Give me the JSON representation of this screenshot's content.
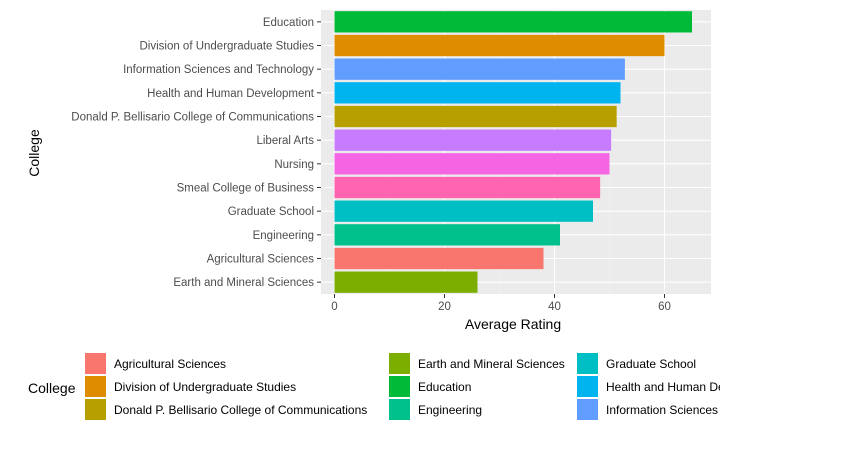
{
  "chart_data": {
    "type": "bar",
    "orientation": "horizontal",
    "xlabel": "Average Rating",
    "ylabel": "College",
    "xlim": [
      0,
      68
    ],
    "x_ticks": [
      0,
      20,
      40,
      60
    ],
    "grid": true,
    "legend": {
      "title": "College",
      "placement": "bottom"
    },
    "categories": [
      "Education",
      "Division of Undergraduate Studies",
      "Information Sciences and Technology",
      "Health and Human Development",
      "Donald P. Bellisario College of Communications",
      "Liberal Arts",
      "Nursing",
      "Smeal College of Business",
      "Graduate School",
      "Engineering",
      "Agricultural Sciences",
      "Earth and Mineral Sciences"
    ],
    "values": [
      65,
      60,
      52.8,
      52,
      51.3,
      50.3,
      50,
      48.3,
      47,
      41,
      38,
      26
    ],
    "colors": {
      "Agricultural Sciences": "#F8766D",
      "Division of Undergraduate Studies": "#DE8C00",
      "Donald P. Bellisario College of Communications": "#B79F00",
      "Earth and Mineral Sciences": "#7CAE00",
      "Education": "#00BA38",
      "Engineering": "#00C08B",
      "Graduate School": "#00BFC4",
      "Health and Human Development": "#00B4F0",
      "Information Sciences and Technology": "#619CFF",
      "Liberal Arts": "#C77CFF",
      "Nursing": "#F564E3",
      "Smeal College of Business": "#FF64B0"
    },
    "legend_entries": [
      [
        "Agricultural Sciences",
        "Division of Undergraduate Studies",
        "Donald P. Bellisario College of Communications"
      ],
      [
        "Earth and Mineral Sciences",
        "Education",
        "Engineering"
      ],
      [
        "Graduate School",
        "Health and Human Development",
        "Information Sciences and Technology"
      ]
    ]
  }
}
